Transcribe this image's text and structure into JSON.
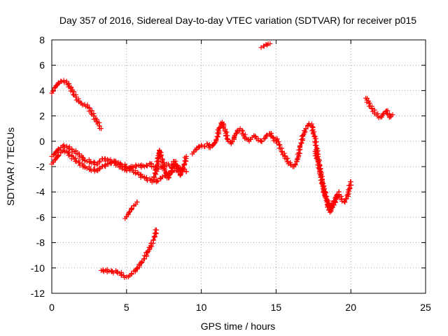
{
  "chart_data": {
    "type": "scatter",
    "title": "Day 357 of 2016, Sidereal Day-to-day VTEC variation (SDTVAR) for receiver p015",
    "xlabel": "GPS time / hours",
    "ylabel": "SDTVAR / TECUs",
    "xlim": [
      0,
      25
    ],
    "ylim": [
      -12,
      8
    ],
    "xticks": [
      0,
      5,
      10,
      15,
      20,
      25
    ],
    "yticks": [
      -12,
      -10,
      -8,
      -6,
      -4,
      -2,
      0,
      2,
      4,
      6,
      8
    ],
    "grid": true,
    "marker": "+",
    "color": "#ff0000",
    "series": [
      {
        "x": [
          0.0,
          0.2,
          0.4,
          0.6,
          0.8,
          1.0,
          1.2,
          1.4,
          1.6,
          1.8,
          2.0,
          2.2,
          2.4,
          2.6,
          2.8,
          3.0,
          3.2,
          3.3
        ],
        "y": [
          3.8,
          4.2,
          4.5,
          4.75,
          4.8,
          4.6,
          4.3,
          3.9,
          3.5,
          3.2,
          3.0,
          2.9,
          2.7,
          2.4,
          2.0,
          1.6,
          1.2,
          1.0
        ]
      },
      {
        "x": [
          0.0,
          0.2,
          0.4,
          0.6,
          0.8,
          1.0,
          1.2,
          1.5,
          1.8,
          2.2,
          2.6,
          3.0,
          3.4,
          3.8,
          4.2,
          4.6,
          5.0,
          5.4,
          5.8,
          6.2,
          6.6,
          7.0,
          7.4,
          7.8,
          8.2,
          8.6,
          9.0
        ],
        "y": [
          -1.2,
          -1.0,
          -0.7,
          -0.5,
          -0.3,
          -0.4,
          -0.6,
          -0.8,
          -1.0,
          -1.5,
          -1.6,
          -1.8,
          -1.4,
          -1.5,
          -1.7,
          -2.0,
          -2.3,
          -2.0,
          -1.9,
          -2.0,
          -1.8,
          -2.2,
          -2.0,
          -1.8,
          -2.0,
          -2.1,
          -2.4
        ]
      },
      {
        "x": [
          0.0,
          0.2,
          0.4,
          0.6,
          0.8,
          1.0,
          1.2,
          1.5,
          1.8,
          2.2,
          2.6,
          3.0,
          3.4,
          3.8,
          4.2,
          4.6,
          5.0,
          5.4,
          5.8,
          6.2,
          6.6,
          7.0,
          7.4,
          7.8,
          8.2,
          8.6
        ],
        "y": [
          -1.8,
          -1.5,
          -1.2,
          -0.9,
          -0.7,
          -0.8,
          -1.1,
          -1.4,
          -1.7,
          -2.0,
          -2.2,
          -2.3,
          -2.0,
          -1.8,
          -1.6,
          -1.8,
          -2.0,
          -2.3,
          -2.6,
          -2.9,
          -3.1,
          -3.2,
          -2.8,
          -2.5,
          -2.3,
          -2.2
        ]
      },
      {
        "x": [
          6.8,
          7.0,
          7.2,
          7.4,
          7.6,
          7.8,
          8.0,
          8.2,
          8.4,
          8.6,
          8.8,
          9.0
        ],
        "y": [
          -3.0,
          -2.2,
          -0.7,
          -1.5,
          -2.5,
          -2.9,
          -2.3,
          -1.6,
          -1.9,
          -2.7,
          -2.1,
          -1.2
        ]
      },
      {
        "x": [
          3.3,
          3.6,
          4.0,
          4.4,
          4.8,
          5.0,
          5.2,
          5.6,
          6.0,
          6.4,
          6.8,
          7.0
        ],
        "y": [
          -10.2,
          -10.2,
          -10.3,
          -10.3,
          -10.6,
          -10.7,
          -10.6,
          -10.2,
          -9.6,
          -8.8,
          -7.8,
          -7.0
        ]
      },
      {
        "x": [
          4.9,
          5.1,
          5.3,
          5.5,
          5.7
        ],
        "y": [
          -6.1,
          -5.8,
          -5.4,
          -5.1,
          -4.8
        ]
      },
      {
        "x": [
          9.4,
          9.6,
          9.8,
          10.0,
          10.2,
          10.4,
          10.6,
          10.8,
          11.0,
          11.2,
          11.4,
          11.6,
          11.8,
          12.0,
          12.2,
          12.4,
          12.6,
          12.8,
          13.0,
          13.2,
          13.4,
          13.6,
          13.8,
          14.0,
          14.2,
          14.4,
          14.6,
          14.8,
          15.0
        ],
        "y": [
          -1.0,
          -0.7,
          -0.5,
          -0.3,
          -0.4,
          -0.2,
          -0.5,
          -0.3,
          0.0,
          1.0,
          1.5,
          0.8,
          0.0,
          -0.2,
          0.3,
          0.8,
          1.0,
          0.6,
          0.2,
          0.0,
          0.3,
          0.4,
          0.2,
          0.0,
          0.2,
          0.5,
          0.6,
          0.3,
          0.0
        ]
      },
      {
        "x": [
          15.0,
          15.2,
          15.4,
          15.6,
          15.8,
          16.0,
          16.2,
          16.4,
          16.6,
          16.8,
          17.0,
          17.2,
          17.4,
          17.6,
          17.8,
          18.0,
          18.2,
          18.4,
          18.6,
          18.8,
          19.0,
          19.2,
          19.4,
          19.6,
          19.8,
          20.0
        ],
        "y": [
          0.2,
          -0.3,
          -0.8,
          -1.2,
          -1.6,
          -1.9,
          -2.0,
          -1.6,
          -0.5,
          0.4,
          1.0,
          1.4,
          1.2,
          0.2,
          -1.2,
          -2.6,
          -3.8,
          -4.8,
          -5.6,
          -5.2,
          -4.6,
          -4.2,
          -4.6,
          -4.8,
          -4.2,
          -3.2
        ]
      },
      {
        "x": [
          17.6,
          17.8,
          18.0,
          18.2,
          18.4,
          18.6,
          18.8,
          19.0,
          19.2
        ],
        "y": [
          -0.8,
          -1.6,
          -2.8,
          -3.9,
          -4.6,
          -5.3,
          -4.9,
          -4.4,
          -4.0
        ]
      },
      {
        "x": [
          14.0,
          14.2,
          14.4,
          14.6
        ],
        "y": [
          7.4,
          7.5,
          7.6,
          7.7
        ]
      },
      {
        "x": [
          21.0,
          21.2,
          21.4,
          21.6,
          21.8,
          22.0,
          22.2,
          22.4,
          22.6,
          22.8
        ],
        "y": [
          3.4,
          3.0,
          2.6,
          2.3,
          2.0,
          1.9,
          2.2,
          2.4,
          1.9,
          2.1
        ]
      }
    ]
  }
}
